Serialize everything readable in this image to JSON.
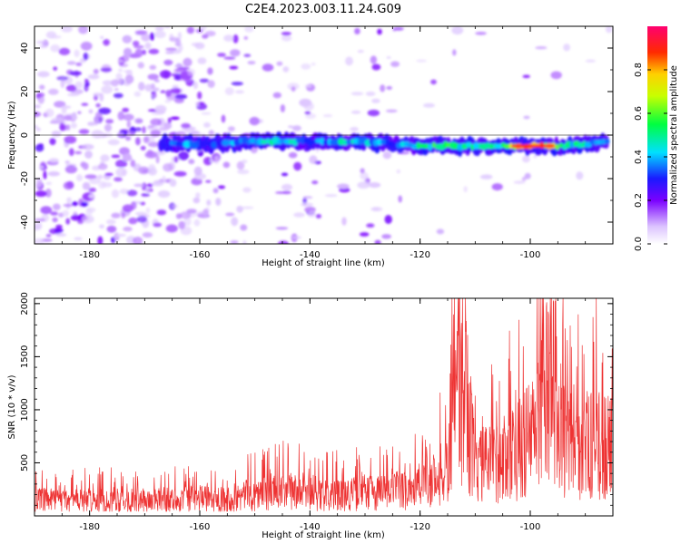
{
  "title": "C2E4.2023.003.11.24.G09",
  "chart_data": [
    {
      "type": "heatmap",
      "xlabel": "Height of straight line (km)",
      "ylabel": "Frequency (Hz)",
      "xlim": [
        -190,
        -85
      ],
      "ylim": [
        -50,
        50
      ],
      "x_ticks": [
        -180,
        -160,
        -140,
        -120,
        -100
      ],
      "y_ticks": [
        -40,
        -20,
        0,
        20,
        40
      ],
      "colorbar": {
        "label": "Normalized spectral amplitude",
        "range": [
          0,
          1
        ],
        "ticks": [
          0.0,
          0.2,
          0.4,
          0.6,
          0.8
        ]
      },
      "ridge": [
        {
          "x": -167,
          "y": -4,
          "amp": 0.3
        },
        {
          "x": -163,
          "y": -4,
          "amp": 0.42
        },
        {
          "x": -157,
          "y": -4,
          "amp": 0.35
        },
        {
          "x": -152,
          "y": -3,
          "amp": 0.45
        },
        {
          "x": -148,
          "y": -3,
          "amp": 0.5
        },
        {
          "x": -145,
          "y": -3,
          "amp": 0.5
        },
        {
          "x": -140,
          "y": -3,
          "amp": 0.38
        },
        {
          "x": -135,
          "y": -3,
          "amp": 0.48
        },
        {
          "x": -130,
          "y": -3,
          "amp": 0.45
        },
        {
          "x": -125,
          "y": -4,
          "amp": 0.38
        },
        {
          "x": -120,
          "y": -5,
          "amp": 0.55
        },
        {
          "x": -115,
          "y": -5,
          "amp": 0.58
        },
        {
          "x": -110,
          "y": -5,
          "amp": 0.5
        },
        {
          "x": -105,
          "y": -5,
          "amp": 0.6
        },
        {
          "x": -102,
          "y": -5,
          "amp": 0.85
        },
        {
          "x": -98,
          "y": -5,
          "amp": 0.95
        },
        {
          "x": -94,
          "y": -5,
          "amp": 0.55
        },
        {
          "x": -90,
          "y": -4,
          "amp": 0.5
        },
        {
          "x": -86,
          "y": -3,
          "amp": 0.45
        }
      ]
    },
    {
      "type": "line",
      "xlabel": "Height of straight line (km)",
      "ylabel": "SNR (10 * v/v)",
      "xlim": [
        -190,
        -85
      ],
      "ylim": [
        0,
        2050
      ],
      "x_ticks": [
        -180,
        -160,
        -140,
        -120,
        -100
      ],
      "y_ticks": [
        500,
        1000,
        1500,
        2000
      ],
      "series": [
        {
          "color": "#ee3333",
          "envelope_x": [
            -190,
            -170,
            -155,
            -150,
            -143,
            -138,
            -133,
            -128,
            -122,
            -118,
            -115,
            -113,
            -112,
            -110,
            -106,
            -102,
            -99,
            -97,
            -96,
            -95,
            -93,
            -91,
            -89,
            -87,
            -85
          ],
          "envelope_y": [
            200,
            200,
            220,
            280,
            320,
            260,
            280,
            300,
            350,
            420,
            600,
            1500,
            1700,
            600,
            700,
            850,
            1100,
            1600,
            1900,
            1200,
            900,
            950,
            900,
            900,
            850
          ]
        }
      ]
    }
  ]
}
